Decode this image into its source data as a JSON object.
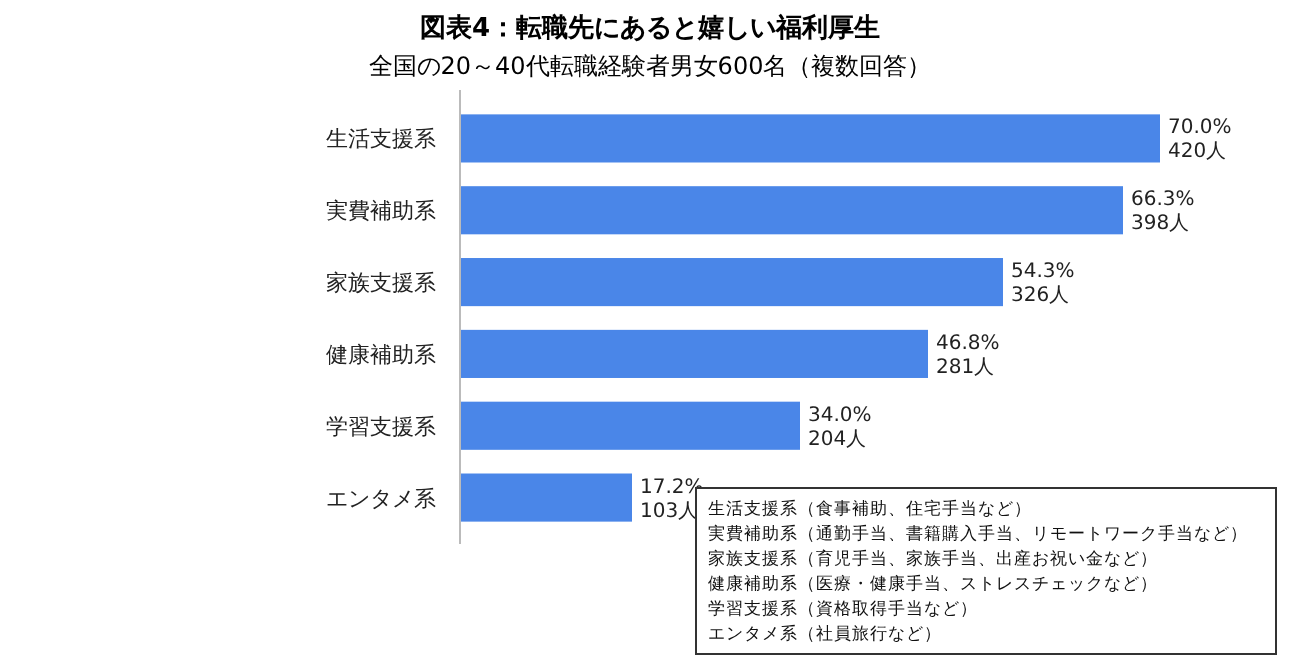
{
  "chart_data": {
    "type": "bar",
    "orientation": "horizontal",
    "title": "図表4：転職先にあると嬉しい福利厚生",
    "subtitle": "全国の20～40代転職経験者男女600名（複数回答）",
    "categories": [
      "生活支援系",
      "実費補助系",
      "家族支援系",
      "健康補助系",
      "学習支援系",
      "エンタメ系"
    ],
    "values": [
      70.0,
      66.3,
      54.3,
      46.8,
      34.0,
      17.2
    ],
    "color": "#4a86e8",
    "value_labels": [
      "70.0%\n420人",
      "66.3%\n398人",
      "54.3%\n326人",
      "46.8%\n281人",
      "34.0%\n204人",
      "17.2%\n103人"
    ],
    "annotations": [
      "生活支援系（食事補助、住宅手当など）",
      "実費補助系（通勤手当、書籍購入手当、リモートワーク手当など）",
      "家族支援系（育児手当、家族手当、出産お祝い金など）",
      "健康補助系（医療・健康手当、ストレスチェックなど）",
      "学習支援系（資格取得手当など）",
      "エンタメ系（社員旅行など）"
    ]
  }
}
